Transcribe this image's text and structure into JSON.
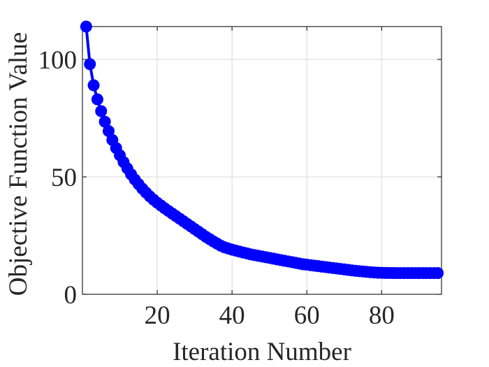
{
  "chart_data": {
    "type": "line",
    "title": "",
    "xlabel": "Iteration Number",
    "ylabel": "Objective Function Value",
    "xlim": [
      0,
      96
    ],
    "ylim": [
      0,
      114
    ],
    "xticks": [
      20,
      40,
      60,
      80
    ],
    "yticks": [
      0,
      50,
      100
    ],
    "xtick_labels": [
      "20",
      "40",
      "60",
      "80"
    ],
    "ytick_labels": [
      "0",
      "50",
      "100"
    ],
    "grid": true,
    "legend": "none",
    "series": [
      {
        "color": "#0000ff",
        "marker": "circle",
        "x": [
          1,
          2,
          3,
          4,
          5,
          6,
          7,
          8,
          9,
          10,
          11,
          12,
          13,
          14,
          15,
          16,
          17,
          18,
          19,
          20,
          21,
          22,
          23,
          24,
          25,
          26,
          27,
          28,
          29,
          30,
          31,
          32,
          33,
          34,
          35,
          36,
          37,
          38,
          39,
          40,
          41,
          42,
          43,
          44,
          45,
          46,
          47,
          48,
          49,
          50,
          51,
          52,
          53,
          54,
          55,
          56,
          57,
          58,
          59,
          60,
          61,
          62,
          63,
          64,
          65,
          66,
          67,
          68,
          69,
          70,
          71,
          72,
          73,
          74,
          75,
          76,
          77,
          78,
          79,
          80,
          81,
          82,
          83,
          84,
          85,
          86,
          87,
          88,
          89,
          90,
          91,
          92,
          93,
          94,
          95
        ],
        "y": [
          114,
          98,
          89,
          83,
          78,
          73.5,
          69.5,
          65.7,
          62.3,
          59.2,
          56.3,
          53.6,
          51.1,
          48.9,
          46.9,
          45,
          43.3,
          41.7,
          40.3,
          39,
          37.8,
          36.6,
          35.5,
          34.4,
          33.3,
          32.2,
          31.1,
          30,
          28.9,
          27.8,
          26.7,
          25.6,
          24.5,
          23.5,
          22.5,
          21.6,
          20.7,
          20,
          19.5,
          19,
          18.6,
          18.2,
          17.8,
          17.4,
          17,
          16.7,
          16.4,
          16.1,
          15.8,
          15.5,
          15.2,
          14.9,
          14.6,
          14.3,
          14,
          13.7,
          13.4,
          13.1,
          12.8,
          12.6,
          12.4,
          12.2,
          12,
          11.8,
          11.6,
          11.4,
          11.2,
          11,
          10.8,
          10.6,
          10.4,
          10.2,
          10,
          9.85,
          9.7,
          9.55,
          9.4,
          9.3,
          9.2,
          9.15,
          9.1,
          9.08,
          9.06,
          9.05,
          9.05,
          9.05,
          9.05,
          9.05,
          9.05,
          9.05,
          9.05,
          9.05,
          9.05,
          9.05,
          9.05
        ]
      }
    ]
  }
}
